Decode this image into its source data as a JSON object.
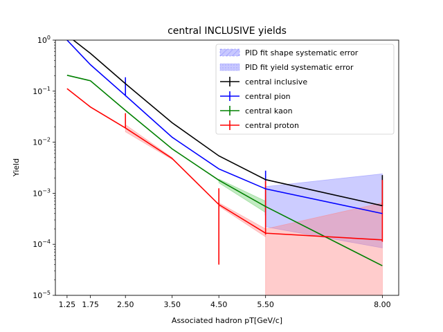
{
  "chart_data": {
    "type": "line",
    "title": "central INCLUSIVE yields",
    "xlabel": "Associated hadron pT[GeV/c]",
    "ylabel": "Yield",
    "yscale": "log",
    "xlim": [
      1.0,
      8.35
    ],
    "ylim": [
      1e-05,
      1
    ],
    "xticks": [
      1.25,
      1.75,
      2.5,
      3.5,
      4.5,
      5.5,
      8.0
    ],
    "xtick_labels": [
      "1.25",
      "1.75",
      "2.50",
      "3.50",
      "4.50",
      "5.50",
      "8.00"
    ],
    "yticks": [
      1e-05,
      0.0001,
      0.001,
      0.01,
      0.1,
      1
    ],
    "ytick_labels": [
      {
        "base": "10",
        "exp": "−5"
      },
      {
        "base": "10",
        "exp": "−4"
      },
      {
        "base": "10",
        "exp": "−3"
      },
      {
        "base": "10",
        "exp": "−2"
      },
      {
        "base": "10",
        "exp": "−1"
      },
      {
        "base": "10",
        "exp": "0"
      }
    ],
    "grid": false,
    "legend_position": "top-right",
    "legend": [
      {
        "label": "PID fit shape systematic error",
        "kind": "hatched-patch",
        "color": "#8080ff"
      },
      {
        "label": "PID fit yield systematic error",
        "kind": "dotted-patch",
        "color": "#8080ff"
      },
      {
        "label": "central inclusive",
        "kind": "line",
        "color": "#000000"
      },
      {
        "label": "central pion",
        "kind": "line",
        "color": "#0000ff"
      },
      {
        "label": "central kaon",
        "kind": "line",
        "color": "#008000"
      },
      {
        "label": "central proton",
        "kind": "line",
        "color": "#ff0000"
      }
    ],
    "x": [
      1.25,
      1.75,
      2.5,
      3.5,
      4.5,
      5.5,
      8.0
    ],
    "series": [
      {
        "name": "central inclusive",
        "color": "#000000",
        "values": [
          1.25,
          0.55,
          0.14,
          0.024,
          0.0054,
          0.00185,
          0.00057
        ],
        "errors": [
          [
            0,
            0
          ],
          [
            0,
            0
          ],
          [
            0,
            0
          ],
          [
            0,
            0
          ],
          [
            0,
            0
          ],
          [
            0,
            0
          ],
          [
            1e-05,
            0.0017
          ]
        ]
      },
      {
        "name": "central pion",
        "color": "#0000ff",
        "values": [
          1.0,
          0.33,
          0.082,
          0.0125,
          0.003,
          0.00122,
          0.0004
        ],
        "errors": [
          [
            0,
            0
          ],
          [
            0,
            0
          ],
          [
            1e-05,
            0.105
          ],
          [
            0,
            0
          ],
          [
            0,
            0
          ],
          [
            0.00085,
            0.00155
          ],
          [
            0,
            0
          ]
        ]
      },
      {
        "name": "central kaon",
        "color": "#008000",
        "values": [
          0.205,
          0.16,
          0.042,
          0.0074,
          0.0018,
          0.00055,
          3.8e-05
        ],
        "errors": [
          [
            0,
            0
          ],
          [
            0,
            0
          ],
          [
            0,
            0
          ],
          [
            0,
            0
          ],
          [
            0,
            0
          ],
          [
            0,
            0
          ],
          [
            0,
            0
          ]
        ]
      },
      {
        "name": "central proton",
        "color": "#ff0000",
        "values": [
          0.112,
          0.049,
          0.019,
          0.0048,
          0.0006,
          0.000165,
          0.000122
        ],
        "errors": [
          [
            0,
            0
          ],
          [
            0,
            0
          ],
          [
            1e-05,
            0.018
          ],
          [
            0,
            0
          ],
          [
            0.00056,
            0.00065
          ],
          [
            1e-05,
            0.0016
          ],
          [
            1e-05,
            0.0017
          ]
        ]
      }
    ],
    "bands": [
      {
        "series": "central pion",
        "color": "#8080ff",
        "x": [
          2.5,
          2.5
        ],
        "lower": [
          0.075,
          0.075
        ],
        "upper": [
          0.09,
          0.09
        ]
      },
      {
        "series": "central pion",
        "color": "#8080ff",
        "x": [
          5.5,
          8.0
        ],
        "lower": [
          0.00022,
          8.5e-05
        ],
        "upper": [
          0.00135,
          0.0024
        ]
      },
      {
        "series": "central kaon",
        "color": "#66cc66",
        "x": [
          4.5,
          5.5
        ],
        "lower": [
          0.0016,
          0.00042
        ],
        "upper": [
          0.0019,
          0.0007
        ]
      },
      {
        "series": "central proton",
        "color": "#ff8080",
        "x": [
          2.5,
          3.5
        ],
        "lower": [
          0.016,
          0.0046
        ],
        "upper": [
          0.022,
          0.005
        ]
      },
      {
        "series": "central proton",
        "color": "#ff8080",
        "x": [
          4.5,
          5.5
        ],
        "lower": [
          0.00056,
          0.00014
        ],
        "upper": [
          0.00065,
          0.0002
        ]
      },
      {
        "series": "central proton",
        "color": "#ff8080",
        "x": [
          5.5,
          8.0
        ],
        "lower": [
          1e-05,
          1e-05
        ],
        "upper": [
          0.0002,
          0.00065
        ]
      }
    ]
  }
}
